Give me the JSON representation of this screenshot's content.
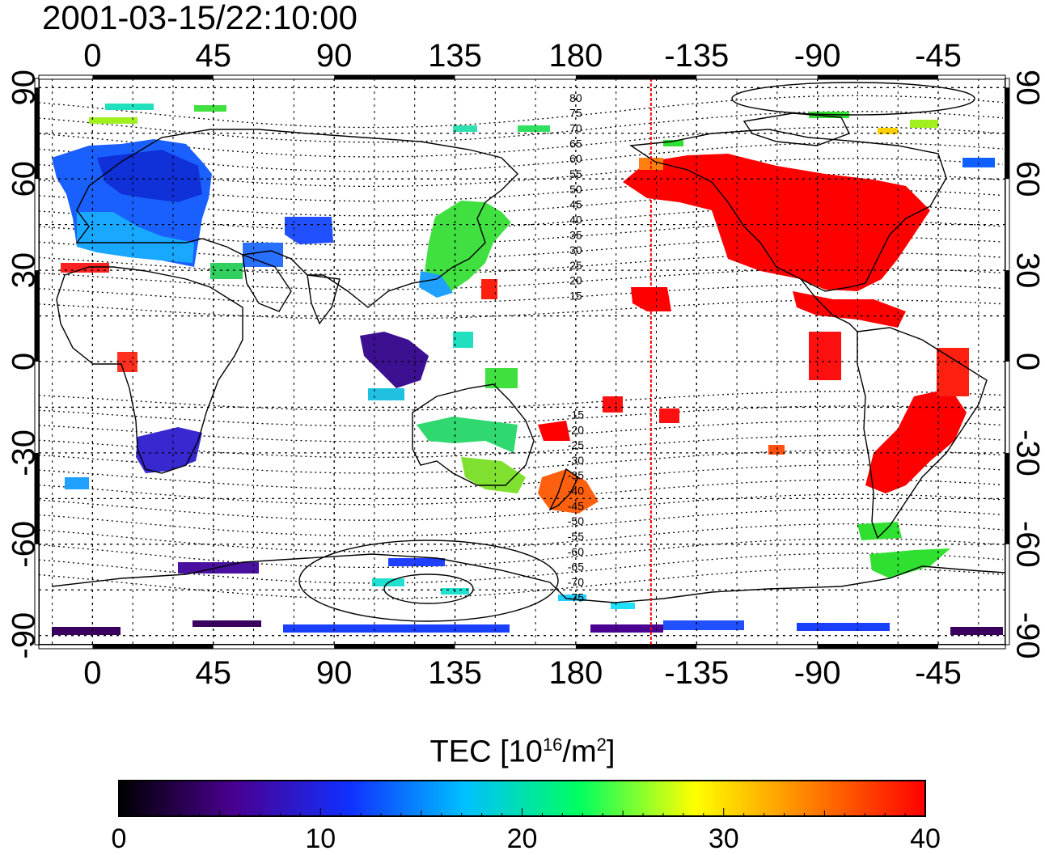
{
  "timestamp": "2001-03-15/22:10:00",
  "map": {
    "lon_top_labels": [
      "0",
      "45",
      "90",
      "135",
      "180",
      "-135",
      "-90",
      "-45"
    ],
    "lon_bottom_labels": [
      "0",
      "45",
      "90",
      "135",
      "180",
      "-135",
      "-90",
      "-45"
    ],
    "lat_labels": [
      "90",
      "60",
      "30",
      "0",
      "-30",
      "-60",
      "-90"
    ],
    "magnetic_lat_labels": [
      "80",
      "75",
      "70",
      "65",
      "60",
      "55",
      "50",
      "45",
      "40",
      "35",
      "30",
      "25",
      "20",
      "15",
      "-15",
      "-20",
      "-25",
      "-30",
      "-35",
      "-40",
      "-45",
      "-50",
      "-55",
      "-60",
      "-65",
      "-70",
      "-75"
    ],
    "terminator_lon": -152
  },
  "colorbar": {
    "title_text": "TEC  [10",
    "title_exp1": "16",
    "title_mid": "/m",
    "title_exp2": "2",
    "title_end": "]",
    "min": 0,
    "max": 40,
    "tick_labels": [
      "0",
      "10",
      "20",
      "30",
      "40"
    ],
    "colors": [
      "#000000",
      "#4a0090",
      "#1030ff",
      "#00c0ff",
      "#00ff60",
      "#ffff00",
      "#ff8000",
      "#ff0000"
    ]
  },
  "colors": {
    "terminator": "#ff0000",
    "coast": "#000000",
    "grid": "#000000"
  }
}
